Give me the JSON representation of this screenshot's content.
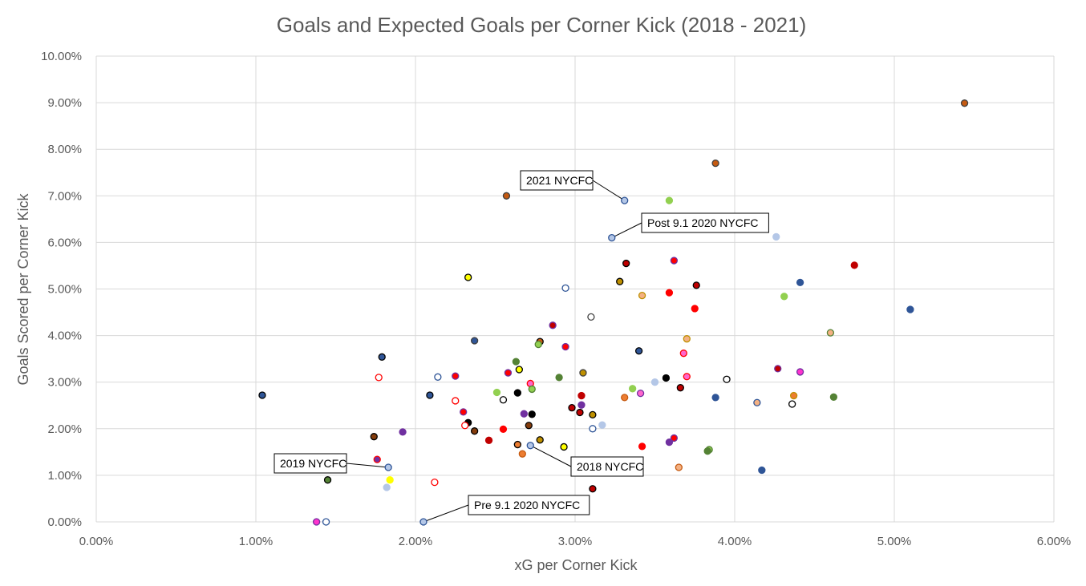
{
  "chart_data": {
    "type": "scatter",
    "title": "Goals and Expected Goals per Corner Kick (2018 - 2021)",
    "xlabel": "xG per Corner Kick",
    "ylabel": "Goals Scored per Corner Kick",
    "xlim": [
      0,
      0.06
    ],
    "ylim": [
      0,
      0.1
    ],
    "x_ticks": [
      0,
      0.01,
      0.02,
      0.03,
      0.04,
      0.05,
      0.06
    ],
    "x_tick_labels": [
      "0.00%",
      "1.00%",
      "2.00%",
      "3.00%",
      "4.00%",
      "5.00%",
      "6.00%"
    ],
    "y_ticks": [
      0,
      0.01,
      0.02,
      0.03,
      0.04,
      0.05,
      0.06,
      0.07,
      0.08,
      0.09,
      0.1
    ],
    "y_tick_labels": [
      "0.00%",
      "1.00%",
      "2.00%",
      "3.00%",
      "4.00%",
      "5.00%",
      "6.00%",
      "7.00%",
      "8.00%",
      "9.00%",
      "10.00%"
    ],
    "grid": true,
    "points": [
      {
        "x": 0.0544,
        "y": 0.0899,
        "fill": "#c55a11",
        "stroke": "#404040"
      },
      {
        "x": 0.0388,
        "y": 0.077,
        "fill": "#c55a11",
        "stroke": "#404040"
      },
      {
        "x": 0.0257,
        "y": 0.07,
        "fill": "#c55a11",
        "stroke": "#404040"
      },
      {
        "x": 0.0331,
        "y": 0.069,
        "fill": "#b4c7e7",
        "stroke": "#2f5597",
        "label": "2021 NYCFC"
      },
      {
        "x": 0.0359,
        "y": 0.069,
        "fill": "#92d050",
        "stroke": "#92d050"
      },
      {
        "x": 0.0323,
        "y": 0.061,
        "fill": "#b4c7e7",
        "stroke": "#2f5597",
        "label": "Post 9.1 2020 NYCFC"
      },
      {
        "x": 0.0426,
        "y": 0.0612,
        "fill": "#b4c7e7",
        "stroke": "#b4c7e7"
      },
      {
        "x": 0.0332,
        "y": 0.0555,
        "fill": "#c00000",
        "stroke": "#000000"
      },
      {
        "x": 0.0362,
        "y": 0.0561,
        "fill": "#ff0000",
        "stroke": "#7030a0"
      },
      {
        "x": 0.0475,
        "y": 0.0551,
        "fill": "#c00000",
        "stroke": "#c00000"
      },
      {
        "x": 0.0233,
        "y": 0.0525,
        "fill": "#ffff00",
        "stroke": "#000000"
      },
      {
        "x": 0.0328,
        "y": 0.0516,
        "fill": "#bf9000",
        "stroke": "#000000"
      },
      {
        "x": 0.0294,
        "y": 0.0502,
        "fill": "#ffffff",
        "stroke": "#2f5597"
      },
      {
        "x": 0.0441,
        "y": 0.0514,
        "fill": "#2f5597",
        "stroke": "#2f5597"
      },
      {
        "x": 0.0376,
        "y": 0.0508,
        "fill": "#c00000",
        "stroke": "#000000"
      },
      {
        "x": 0.0359,
        "y": 0.0492,
        "fill": "#ff0000",
        "stroke": "#ff0000"
      },
      {
        "x": 0.0342,
        "y": 0.0486,
        "fill": "#f4b183",
        "stroke": "#bf9000"
      },
      {
        "x": 0.0431,
        "y": 0.0484,
        "fill": "#92d050",
        "stroke": "#92d050"
      },
      {
        "x": 0.0375,
        "y": 0.0458,
        "fill": "#ff0000",
        "stroke": "#ff0000"
      },
      {
        "x": 0.051,
        "y": 0.0456,
        "fill": "#2f5597",
        "stroke": "#2f5597"
      },
      {
        "x": 0.031,
        "y": 0.044,
        "fill": "#ffffff",
        "stroke": "#404040"
      },
      {
        "x": 0.0286,
        "y": 0.0422,
        "fill": "#c00000",
        "stroke": "#7030a0"
      },
      {
        "x": 0.046,
        "y": 0.0406,
        "fill": "#f4b183",
        "stroke": "#548235"
      },
      {
        "x": 0.037,
        "y": 0.0393,
        "fill": "#f4b183",
        "stroke": "#bf9000"
      },
      {
        "x": 0.0237,
        "y": 0.0389,
        "fill": "#2f5597",
        "stroke": "#404040"
      },
      {
        "x": 0.0278,
        "y": 0.0387,
        "fill": "#c55a11",
        "stroke": "#000000"
      },
      {
        "x": 0.0277,
        "y": 0.0381,
        "fill": "#92d050",
        "stroke": "#548235"
      },
      {
        "x": 0.0294,
        "y": 0.0376,
        "fill": "#ff0000",
        "stroke": "#7030a0"
      },
      {
        "x": 0.034,
        "y": 0.0367,
        "fill": "#2f5597",
        "stroke": "#000000"
      },
      {
        "x": 0.0368,
        "y": 0.0362,
        "fill": "#ff66cc",
        "stroke": "#ff0000"
      },
      {
        "x": 0.0179,
        "y": 0.0354,
        "fill": "#2f5597",
        "stroke": "#000000"
      },
      {
        "x": 0.0263,
        "y": 0.0344,
        "fill": "#548235",
        "stroke": "#548235"
      },
      {
        "x": 0.0265,
        "y": 0.0327,
        "fill": "#ffff00",
        "stroke": "#000000"
      },
      {
        "x": 0.0427,
        "y": 0.0329,
        "fill": "#c00000",
        "stroke": "#7030a0"
      },
      {
        "x": 0.0441,
        "y": 0.0322,
        "fill": "#ff33cc",
        "stroke": "#7030a0"
      },
      {
        "x": 0.0258,
        "y": 0.032,
        "fill": "#ff0000",
        "stroke": "#7030a0"
      },
      {
        "x": 0.0305,
        "y": 0.032,
        "fill": "#bf9000",
        "stroke": "#404040"
      },
      {
        "x": 0.0225,
        "y": 0.0313,
        "fill": "#ff0000",
        "stroke": "#7030a0"
      },
      {
        "x": 0.037,
        "y": 0.0312,
        "fill": "#ff66cc",
        "stroke": "#ff0000"
      },
      {
        "x": 0.0177,
        "y": 0.031,
        "fill": "#ffffff",
        "stroke": "#ff0000"
      },
      {
        "x": 0.0214,
        "y": 0.0311,
        "fill": "#ffffff",
        "stroke": "#2f5597"
      },
      {
        "x": 0.029,
        "y": 0.031,
        "fill": "#548235",
        "stroke": "#548235"
      },
      {
        "x": 0.0357,
        "y": 0.0309,
        "fill": "#000000",
        "stroke": "#000000"
      },
      {
        "x": 0.0395,
        "y": 0.0306,
        "fill": "#ffffff",
        "stroke": "#000000"
      },
      {
        "x": 0.035,
        "y": 0.03,
        "fill": "#b4c7e7",
        "stroke": "#b4c7e7"
      },
      {
        "x": 0.0272,
        "y": 0.0297,
        "fill": "#ff66cc",
        "stroke": "#ff0000"
      },
      {
        "x": 0.0366,
        "y": 0.0288,
        "fill": "#c00000",
        "stroke": "#000000"
      },
      {
        "x": 0.0336,
        "y": 0.0286,
        "fill": "#92d050",
        "stroke": "#92d050"
      },
      {
        "x": 0.0273,
        "y": 0.0285,
        "fill": "#92d050",
        "stroke": "#548235"
      },
      {
        "x": 0.0251,
        "y": 0.0278,
        "fill": "#92d050",
        "stroke": "#92d050"
      },
      {
        "x": 0.0264,
        "y": 0.0277,
        "fill": "#000000",
        "stroke": "#000000"
      },
      {
        "x": 0.0341,
        "y": 0.0276,
        "fill": "#ff66cc",
        "stroke": "#7030a0"
      },
      {
        "x": 0.0104,
        "y": 0.0272,
        "fill": "#2f5597",
        "stroke": "#000000"
      },
      {
        "x": 0.0209,
        "y": 0.0272,
        "fill": "#2f5597",
        "stroke": "#000000"
      },
      {
        "x": 0.0304,
        "y": 0.0271,
        "fill": "#c00000",
        "stroke": "#c00000"
      },
      {
        "x": 0.0437,
        "y": 0.0271,
        "fill": "#ed7d31",
        "stroke": "#bf9000"
      },
      {
        "x": 0.0462,
        "y": 0.0268,
        "fill": "#548235",
        "stroke": "#548235"
      },
      {
        "x": 0.0331,
        "y": 0.0267,
        "fill": "#ed7d31",
        "stroke": "#c55a11"
      },
      {
        "x": 0.0388,
        "y": 0.0267,
        "fill": "#2f5597",
        "stroke": "#2f5597"
      },
      {
        "x": 0.0255,
        "y": 0.0262,
        "fill": "#ffffff",
        "stroke": "#000000"
      },
      {
        "x": 0.0225,
        "y": 0.026,
        "fill": "#ffffff",
        "stroke": "#ff0000"
      },
      {
        "x": 0.0414,
        "y": 0.0256,
        "fill": "#f4b183",
        "stroke": "#2f5597"
      },
      {
        "x": 0.0436,
        "y": 0.0253,
        "fill": "#ffffff",
        "stroke": "#000000"
      },
      {
        "x": 0.0304,
        "y": 0.0251,
        "fill": "#7030a0",
        "stroke": "#7030a0"
      },
      {
        "x": 0.0298,
        "y": 0.0245,
        "fill": "#c00000",
        "stroke": "#000000"
      },
      {
        "x": 0.023,
        "y": 0.0236,
        "fill": "#ff0000",
        "stroke": "#7030a0"
      },
      {
        "x": 0.0303,
        "y": 0.0235,
        "fill": "#c00000",
        "stroke": "#000000"
      },
      {
        "x": 0.0268,
        "y": 0.0232,
        "fill": "#7030a0",
        "stroke": "#7030a0"
      },
      {
        "x": 0.0273,
        "y": 0.0231,
        "fill": "#000000",
        "stroke": "#000000"
      },
      {
        "x": 0.0311,
        "y": 0.023,
        "fill": "#bf9000",
        "stroke": "#000000"
      },
      {
        "x": 0.0233,
        "y": 0.0213,
        "fill": "#000000",
        "stroke": "#000000"
      },
      {
        "x": 0.0317,
        "y": 0.0208,
        "fill": "#b4c7e7",
        "stroke": "#b4c7e7"
      },
      {
        "x": 0.0231,
        "y": 0.0207,
        "fill": "#ffffff",
        "stroke": "#ff0000"
      },
      {
        "x": 0.0271,
        "y": 0.0207,
        "fill": "#843c0c",
        "stroke": "#000000"
      },
      {
        "x": 0.0311,
        "y": 0.02,
        "fill": "#ffffff",
        "stroke": "#2f5597"
      },
      {
        "x": 0.0255,
        "y": 0.0199,
        "fill": "#ff0000",
        "stroke": "#ff0000"
      },
      {
        "x": 0.0237,
        "y": 0.0195,
        "fill": "#843c0c",
        "stroke": "#000000"
      },
      {
        "x": 0.0192,
        "y": 0.0193,
        "fill": "#7030a0",
        "stroke": "#7030a0"
      },
      {
        "x": 0.0174,
        "y": 0.0183,
        "fill": "#843c0c",
        "stroke": "#000000"
      },
      {
        "x": 0.0362,
        "y": 0.018,
        "fill": "#ff0000",
        "stroke": "#7030a0"
      },
      {
        "x": 0.0278,
        "y": 0.0176,
        "fill": "#bf9000",
        "stroke": "#000000"
      },
      {
        "x": 0.0246,
        "y": 0.0175,
        "fill": "#c00000",
        "stroke": "#c00000"
      },
      {
        "x": 0.0359,
        "y": 0.0171,
        "fill": "#7030a0",
        "stroke": "#7030a0"
      },
      {
        "x": 0.0264,
        "y": 0.0166,
        "fill": "#ed7d31",
        "stroke": "#000000"
      },
      {
        "x": 0.0272,
        "y": 0.0164,
        "fill": "#b4c7e7",
        "stroke": "#2f5597",
        "label": "2018 NYCFC"
      },
      {
        "x": 0.0342,
        "y": 0.0162,
        "fill": "#ff0000",
        "stroke": "#ff0000"
      },
      {
        "x": 0.0293,
        "y": 0.0161,
        "fill": "#ffff00",
        "stroke": "#000000"
      },
      {
        "x": 0.0384,
        "y": 0.0155,
        "fill": "#92d050",
        "stroke": "#548235"
      },
      {
        "x": 0.0383,
        "y": 0.0152,
        "fill": "#548235",
        "stroke": "#548235"
      },
      {
        "x": 0.0267,
        "y": 0.0146,
        "fill": "#ed7d31",
        "stroke": "#c55a11"
      },
      {
        "x": 0.0176,
        "y": 0.0134,
        "fill": "#7030a0",
        "stroke": "#ff0000"
      },
      {
        "x": 0.0183,
        "y": 0.0117,
        "fill": "#b4c7e7",
        "stroke": "#2f5597",
        "label": "2019 NYCFC"
      },
      {
        "x": 0.0365,
        "y": 0.0117,
        "fill": "#f4b183",
        "stroke": "#c55a11"
      },
      {
        "x": 0.0417,
        "y": 0.0111,
        "fill": "#2f5597",
        "stroke": "#2f5597"
      },
      {
        "x": 0.0145,
        "y": 0.009,
        "fill": "#548235",
        "stroke": "#000000"
      },
      {
        "x": 0.0184,
        "y": 0.009,
        "fill": "#ffff00",
        "stroke": "#ffff00"
      },
      {
        "x": 0.0212,
        "y": 0.0085,
        "fill": "#ffffff",
        "stroke": "#ff0000"
      },
      {
        "x": 0.0182,
        "y": 0.0074,
        "fill": "#b4c7e7",
        "stroke": "#b4c7e7"
      },
      {
        "x": 0.0311,
        "y": 0.0071,
        "fill": "#c00000",
        "stroke": "#000000"
      },
      {
        "x": 0.0138,
        "y": 0.0,
        "fill": "#ff33cc",
        "stroke": "#7030a0"
      },
      {
        "x": 0.0144,
        "y": 0.0,
        "fill": "#ffffff",
        "stroke": "#2f5597"
      },
      {
        "x": 0.0205,
        "y": 0.0,
        "fill": "#b4c7e7",
        "stroke": "#2f5597",
        "label": "Pre 9.1 2020 NYCFC"
      }
    ]
  }
}
